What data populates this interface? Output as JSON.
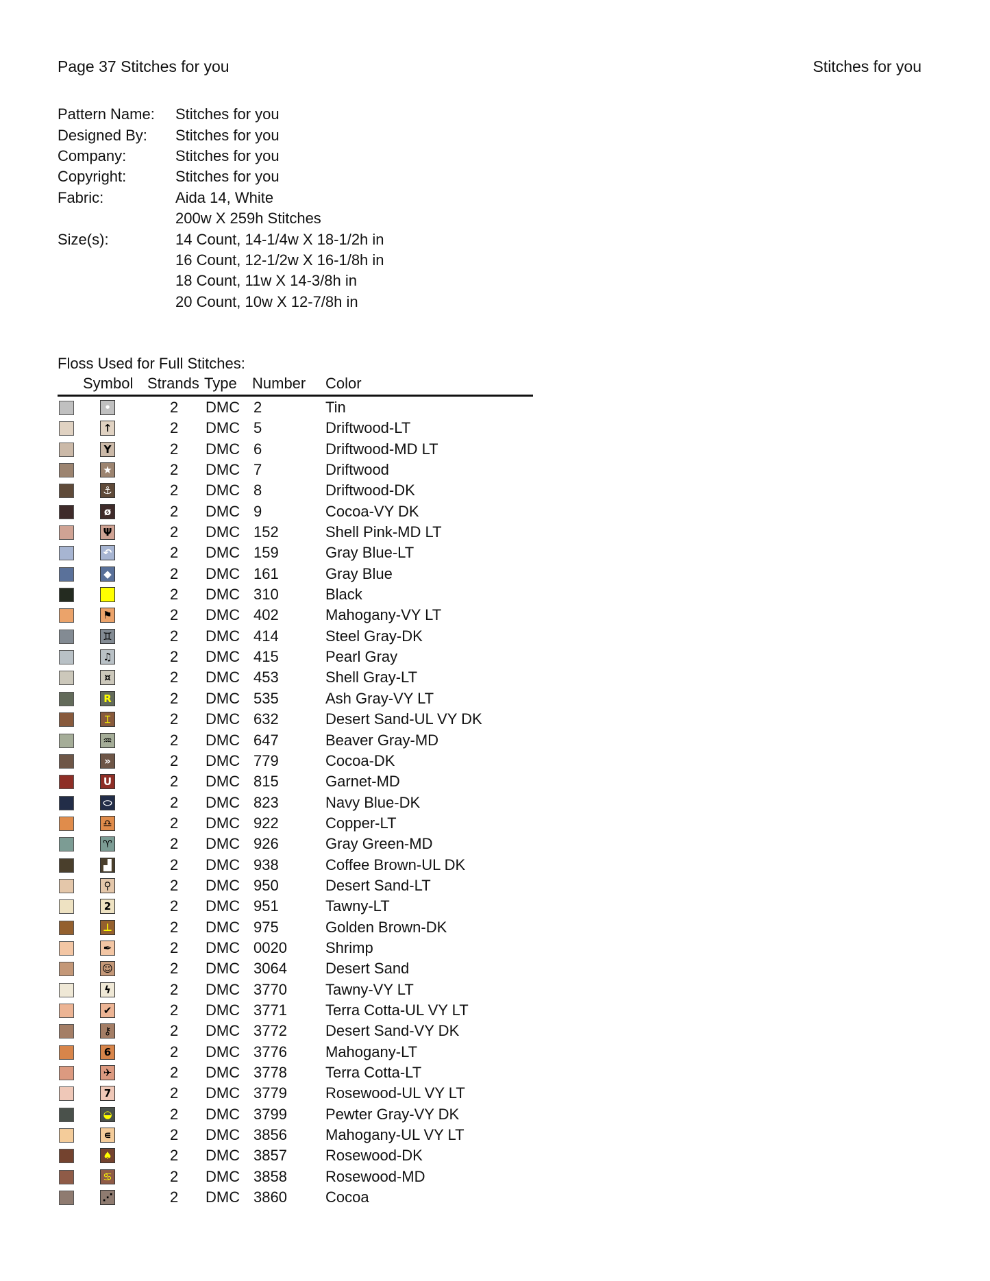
{
  "header": {
    "left": "Page 37  Stitches for you",
    "right": "Stitches for you"
  },
  "info": [
    {
      "label": "Pattern Name:",
      "value": "Stitches for you"
    },
    {
      "label": "Designed By:",
      "value": "Stitches for you"
    },
    {
      "label": "Company:",
      "value": "Stitches for you"
    },
    {
      "label": "Copyright:",
      "value": "Stitches for you"
    },
    {
      "label": "Fabric:",
      "value": "Aida 14, White"
    },
    {
      "label": "",
      "value": "200w X 259h Stitches"
    },
    {
      "label": "Size(s):",
      "value": "14 Count,   14-1/4w X 18-1/2h in"
    },
    {
      "label": "",
      "value": "16 Count,   12-1/2w X 16-1/8h in"
    },
    {
      "label": "",
      "value": "18 Count,   11w X 14-3/8h in"
    },
    {
      "label": "",
      "value": "20 Count,   10w X 12-7/8h in"
    }
  ],
  "floss": {
    "title": "Floss Used for Full Stitches:",
    "columns": {
      "symbol": "Symbol",
      "strands": "Strands",
      "type": "Type",
      "number": "Number",
      "color": "Color"
    },
    "rows": [
      {
        "swatch": "#c0c0c0",
        "symbol_icon": "oval",
        "glyph": "•",
        "glyph_color": "#ffffff",
        "strands": "2",
        "type": "DMC",
        "number": "2",
        "color": "Tin"
      },
      {
        "swatch": "#e0d2c2",
        "symbol_icon": "arrow-up",
        "glyph": "↑",
        "glyph_color": "#000000",
        "strands": "2",
        "type": "DMC",
        "number": "5",
        "color": "Driftwood-LT"
      },
      {
        "swatch": "#cbb9a8",
        "symbol_icon": "letter-y",
        "glyph": "Y",
        "glyph_color": "#000000",
        "strands": "2",
        "type": "DMC",
        "number": "6",
        "color": "Driftwood-MD LT"
      },
      {
        "swatch": "#9c8470",
        "symbol_icon": "star",
        "glyph": "★",
        "glyph_color": "#ffffff",
        "strands": "2",
        "type": "DMC",
        "number": "7",
        "color": "Driftwood"
      },
      {
        "swatch": "#5f4a39",
        "symbol_icon": "anchor",
        "glyph": "⚓",
        "glyph_color": "#ffffff",
        "strands": "2",
        "type": "DMC",
        "number": "8",
        "color": "Driftwood-DK"
      },
      {
        "swatch": "#3f2b2a",
        "symbol_icon": "feather",
        "glyph": "ø",
        "glyph_color": "#ffffff",
        "strands": "2",
        "type": "DMC",
        "number": "9",
        "color": "Cocoa-VY DK"
      },
      {
        "swatch": "#d0a394",
        "symbol_icon": "psi",
        "glyph": "Ψ",
        "glyph_color": "#000000",
        "strands": "2",
        "type": "DMC",
        "number": "152",
        "color": "Shell Pink-MD LT"
      },
      {
        "swatch": "#a7b5d2",
        "symbol_icon": "u-turn",
        "glyph": "↶",
        "glyph_color": "#ffffff",
        "strands": "2",
        "type": "DMC",
        "number": "159",
        "color": "Gray Blue-LT"
      },
      {
        "swatch": "#5a719a",
        "symbol_icon": "diamond",
        "glyph": "◆",
        "glyph_color": "#ffffff",
        "strands": "2",
        "type": "DMC",
        "number": "161",
        "color": "Gray Blue"
      },
      {
        "swatch": "#242b20",
        "symbol_icon": "yellow-square",
        "glyph": "",
        "glyph_color": "#000000",
        "symbol_bg": "#ffff00",
        "strands": "2",
        "type": "DMC",
        "number": "310",
        "color": "Black"
      },
      {
        "swatch": "#eba36a",
        "symbol_icon": "flag",
        "glyph": "⚑",
        "glyph_color": "#000000",
        "strands": "2",
        "type": "DMC",
        "number": "402",
        "color": "Mahogany-VY LT"
      },
      {
        "swatch": "#838b93",
        "symbol_icon": "gemini",
        "glyph": "♊",
        "glyph_color": "#000000",
        "strands": "2",
        "type": "DMC",
        "number": "414",
        "color": "Steel Gray-DK"
      },
      {
        "swatch": "#b9c1c6",
        "symbol_icon": "music-note",
        "glyph": "♫",
        "glyph_color": "#000000",
        "strands": "2",
        "type": "DMC",
        "number": "415",
        "color": "Pearl Gray"
      },
      {
        "swatch": "#ccc8bb",
        "symbol_icon": "gemini-small",
        "glyph": "¤",
        "glyph_color": "#000000",
        "strands": "2",
        "type": "DMC",
        "number": "453",
        "color": "Shell Gray-LT"
      },
      {
        "swatch": "#636b5a",
        "symbol_icon": "letter-r",
        "glyph": "R",
        "glyph_color": "#ffff00",
        "strands": "2",
        "type": "DMC",
        "number": "535",
        "color": "Ash Gray-VY LT"
      },
      {
        "swatch": "#885a3c",
        "symbol_icon": "i-beam",
        "glyph": "⌶",
        "glyph_color": "#ffff00",
        "strands": "2",
        "type": "DMC",
        "number": "632",
        "color": "Desert Sand-UL VY DK"
      },
      {
        "swatch": "#a5ad98",
        "symbol_icon": "aquarius",
        "glyph": "♒",
        "glyph_color": "#000000",
        "strands": "2",
        "type": "DMC",
        "number": "647",
        "color": "Beaver Gray-MD"
      },
      {
        "swatch": "#6e5647",
        "symbol_icon": "fast-forward",
        "glyph": "»",
        "glyph_color": "#ffffff",
        "strands": "2",
        "type": "DMC",
        "number": "779",
        "color": "Cocoa-DK"
      },
      {
        "swatch": "#8e2e26",
        "symbol_icon": "letter-u",
        "glyph": "U",
        "glyph_color": "#ffffff",
        "strands": "2",
        "type": "DMC",
        "number": "815",
        "color": "Garnet-MD"
      },
      {
        "swatch": "#222d48",
        "symbol_icon": "ellipse",
        "glyph": "⬭",
        "glyph_color": "#ffffff",
        "strands": "2",
        "type": "DMC",
        "number": "823",
        "color": "Navy Blue-DK"
      },
      {
        "swatch": "#e08c4b",
        "symbol_icon": "libra",
        "glyph": "♎",
        "glyph_color": "#000000",
        "strands": "2",
        "type": "DMC",
        "number": "922",
        "color": "Copper-LT"
      },
      {
        "swatch": "#7c9c94",
        "symbol_icon": "aries",
        "glyph": "♈",
        "glyph_color": "#000000",
        "strands": "2",
        "type": "DMC",
        "number": "926",
        "color": "Gray Green-MD"
      },
      {
        "swatch": "#4a3f2c",
        "symbol_icon": "step-block",
        "glyph": "▟",
        "glyph_color": "#ffffff",
        "strands": "2",
        "type": "DMC",
        "number": "938",
        "color": "Coffee Brown-UL DK"
      },
      {
        "swatch": "#e4c7aa",
        "symbol_icon": "magnifier",
        "glyph": "⚲",
        "glyph_color": "#000000",
        "strands": "2",
        "type": "DMC",
        "number": "950",
        "color": "Desert Sand-LT"
      },
      {
        "swatch": "#eee2c2",
        "symbol_icon": "digit-2",
        "glyph": "2",
        "glyph_color": "#000000",
        "strands": "2",
        "type": "DMC",
        "number": "951",
        "color": "Tawny-LT"
      },
      {
        "swatch": "#94602e",
        "symbol_icon": "up-tack",
        "glyph": "⊥",
        "glyph_color": "#ffff00",
        "strands": "2",
        "type": "DMC",
        "number": "975",
        "color": "Golden Brown-DK"
      },
      {
        "swatch": "#f3c6a4",
        "symbol_icon": "pen",
        "glyph": "✒",
        "glyph_color": "#000000",
        "strands": "2",
        "type": "DMC",
        "number": "0020",
        "color": "Shrimp"
      },
      {
        "swatch": "#c49878",
        "symbol_icon": "smiley",
        "glyph": "☺",
        "glyph_color": "#000000",
        "strands": "2",
        "type": "DMC",
        "number": "3064",
        "color": "Desert Sand"
      },
      {
        "swatch": "#efe8d6",
        "symbol_icon": "lightning",
        "glyph": "ϟ",
        "glyph_color": "#000000",
        "strands": "2",
        "type": "DMC",
        "number": "3770",
        "color": "Tawny-VY LT"
      },
      {
        "swatch": "#ecb494",
        "symbol_icon": "check",
        "glyph": "✔",
        "glyph_color": "#000000",
        "strands": "2",
        "type": "DMC",
        "number": "3771",
        "color": "Terra Cotta-UL VY LT"
      },
      {
        "swatch": "#a47e66",
        "symbol_icon": "key",
        "glyph": "⚷",
        "glyph_color": "#000000",
        "strands": "2",
        "type": "DMC",
        "number": "3772",
        "color": "Desert Sand-VY DK"
      },
      {
        "swatch": "#d8854a",
        "symbol_icon": "digit-6",
        "glyph": "6",
        "glyph_color": "#000000",
        "strands": "2",
        "type": "DMC",
        "number": "3776",
        "color": "Mahogany-LT"
      },
      {
        "swatch": "#dc9a80",
        "symbol_icon": "airplane",
        "glyph": "✈",
        "glyph_color": "#000000",
        "strands": "2",
        "type": "DMC",
        "number": "3778",
        "color": "Terra Cotta-LT"
      },
      {
        "swatch": "#efc8b8",
        "symbol_icon": "digit-7",
        "glyph": "7",
        "glyph_color": "#000000",
        "strands": "2",
        "type": "DMC",
        "number": "3779",
        "color": "Rosewood-UL VY LT"
      },
      {
        "swatch": "#4a514b",
        "symbol_icon": "half-circle",
        "glyph": "◒",
        "glyph_color": "#ffff00",
        "strands": "2",
        "type": "DMC",
        "number": "3799",
        "color": "Pewter Gray-VY DK"
      },
      {
        "swatch": "#f4cc9a",
        "symbol_icon": "element-of",
        "glyph": "∊",
        "glyph_color": "#000000",
        "strands": "2",
        "type": "DMC",
        "number": "3856",
        "color": "Mahogany-UL VY LT"
      },
      {
        "swatch": "#74432f",
        "symbol_icon": "spade",
        "glyph": "♠",
        "glyph_color": "#ffff00",
        "strands": "2",
        "type": "DMC",
        "number": "3857",
        "color": "Rosewood-DK"
      },
      {
        "swatch": "#8f5b47",
        "symbol_icon": "cancer",
        "glyph": "♋",
        "glyph_color": "#ffff00",
        "strands": "2",
        "type": "DMC",
        "number": "3858",
        "color": "Rosewood-MD"
      },
      {
        "swatch": "#8f7b70",
        "symbol_icon": "grass",
        "glyph": "⋰",
        "glyph_color": "#000000",
        "strands": "2",
        "type": "DMC",
        "number": "3860",
        "color": "Cocoa"
      }
    ]
  }
}
